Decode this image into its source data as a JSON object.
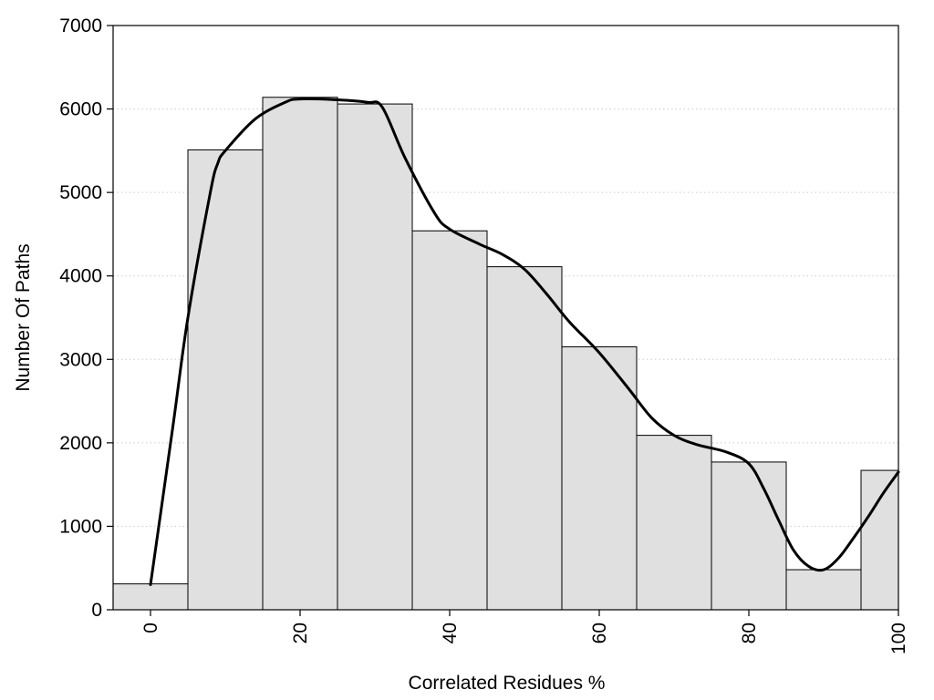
{
  "chart_data": {
    "type": "bar",
    "title": "",
    "xlabel": "Correlated Residues %",
    "ylabel": "Number Of Paths",
    "bin_width": 10,
    "x": [
      0,
      10,
      20,
      30,
      40,
      50,
      60,
      70,
      80,
      90,
      100
    ],
    "values": [
      310,
      5510,
      6140,
      6060,
      4540,
      4110,
      3150,
      2090,
      1770,
      480,
      1670
    ],
    "smooth_curve": {
      "x": [
        0,
        3,
        5,
        8,
        9,
        10,
        14,
        18,
        20,
        25,
        29,
        31,
        34,
        38,
        40,
        44,
        47,
        50,
        53,
        56,
        60,
        64,
        67,
        70,
        73,
        77,
        80,
        82,
        84,
        86,
        88,
        90,
        92,
        94,
        96,
        98,
        100
      ],
      "y": [
        300,
        2200,
        3500,
        5000,
        5350,
        5500,
        5880,
        6080,
        6120,
        6110,
        6080,
        6020,
        5420,
        4750,
        4560,
        4380,
        4260,
        4080,
        3780,
        3450,
        3080,
        2640,
        2300,
        2090,
        1980,
        1890,
        1750,
        1450,
        1070,
        710,
        520,
        480,
        620,
        860,
        1120,
        1400,
        1650
      ]
    },
    "xlim": [
      -5,
      100
    ],
    "ylim": [
      0,
      7000
    ],
    "xticks": [
      0,
      20,
      40,
      60,
      80,
      100
    ],
    "xtick_labels": [
      "0",
      "20",
      "40",
      "60",
      "80",
      "100"
    ],
    "yticks": [
      0,
      1000,
      2000,
      3000,
      4000,
      5000,
      6000,
      7000
    ],
    "ytick_labels": [
      "0",
      "1000",
      "2000",
      "3000",
      "4000",
      "5000",
      "6000",
      "7000"
    ],
    "grid": "horizontal dotted",
    "legend": "none",
    "colors": {
      "bar_fill": "#e0e0e0",
      "bar_stroke": "#000000",
      "curve": "#000000",
      "grid": "#cccccc"
    }
  }
}
